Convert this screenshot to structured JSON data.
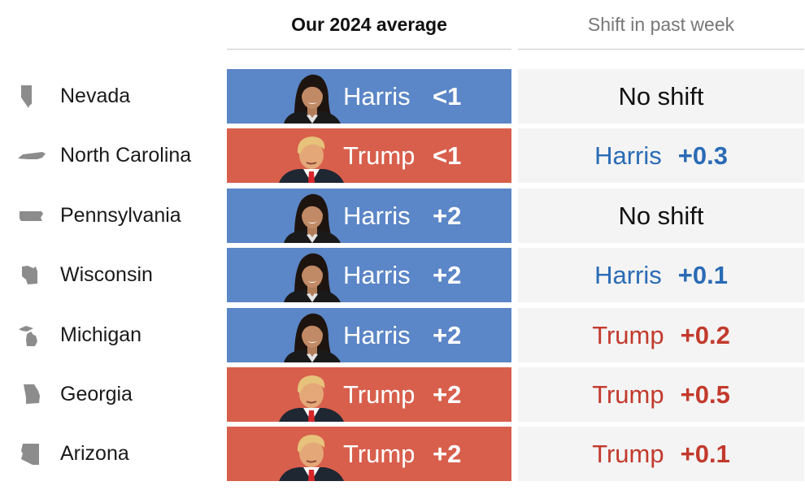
{
  "headers": {
    "average": "Our 2024 average",
    "shift": "Shift in past week"
  },
  "colors": {
    "harris_fill": "#5b86c7",
    "trump_fill": "#d85f4c",
    "harris_text": "#2a6bb5",
    "trump_text": "#c23a2d",
    "state_icon": "#8c8c8c"
  },
  "chart_data": {
    "type": "table",
    "columns": [
      "",
      "Our 2024 average",
      "Shift in past week"
    ],
    "rows": [
      {
        "state": "Nevada",
        "state_icon": "nevada-icon",
        "leader": "Harris",
        "margin": "<1",
        "shift_text": "No shift",
        "shift_leader": "",
        "shift_value": ""
      },
      {
        "state": "North Carolina",
        "state_icon": "north-carolina-icon",
        "leader": "Trump",
        "margin": "<1",
        "shift_text": "",
        "shift_leader": "Harris",
        "shift_value": "+0.3"
      },
      {
        "state": "Pennsylvania",
        "state_icon": "pennsylvania-icon",
        "leader": "Harris",
        "margin": "+2",
        "shift_text": "No shift",
        "shift_leader": "",
        "shift_value": ""
      },
      {
        "state": "Wisconsin",
        "state_icon": "wisconsin-icon",
        "leader": "Harris",
        "margin": "+2",
        "shift_text": "",
        "shift_leader": "Harris",
        "shift_value": "+0.1"
      },
      {
        "state": "Michigan",
        "state_icon": "michigan-icon",
        "leader": "Harris",
        "margin": "+2",
        "shift_text": "",
        "shift_leader": "Trump",
        "shift_value": "+0.2"
      },
      {
        "state": "Georgia",
        "state_icon": "georgia-icon",
        "leader": "Trump",
        "margin": "+2",
        "shift_text": "",
        "shift_leader": "Trump",
        "shift_value": "+0.5"
      },
      {
        "state": "Arizona",
        "state_icon": "arizona-icon",
        "leader": "Trump",
        "margin": "+2",
        "shift_text": "",
        "shift_leader": "Trump",
        "shift_value": "+0.1"
      }
    ]
  }
}
